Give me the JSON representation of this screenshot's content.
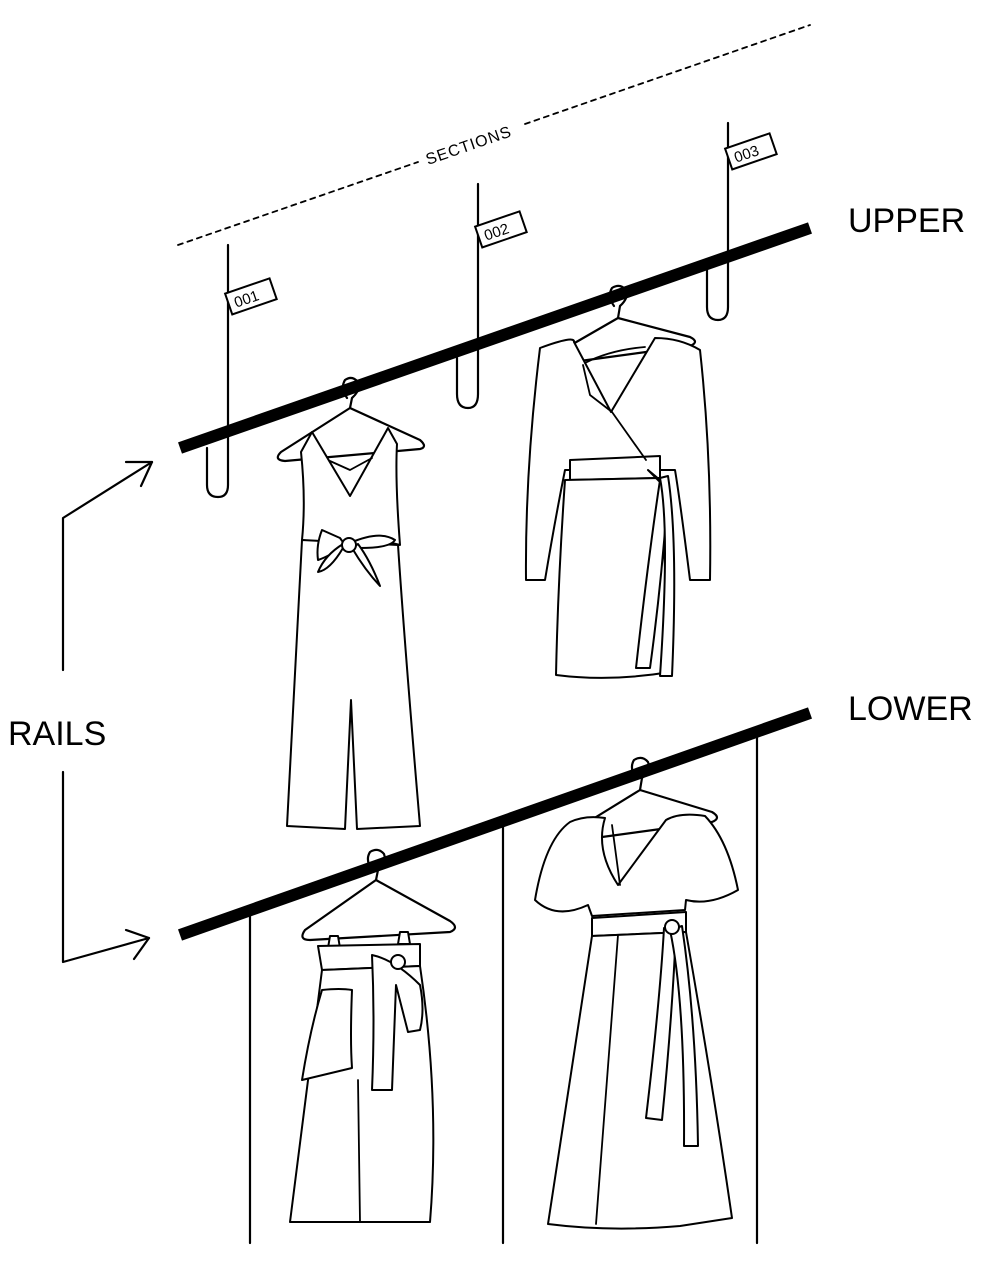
{
  "labels": {
    "sections": "SECTIONS",
    "upper": "UPPER",
    "lower": "LOWER",
    "rails": "RAILS"
  },
  "section_tags": [
    "001",
    "002",
    "003"
  ]
}
